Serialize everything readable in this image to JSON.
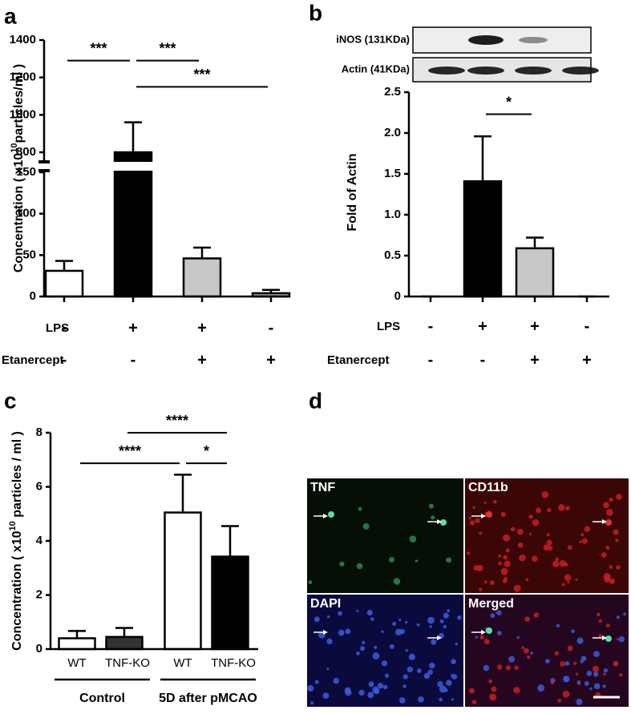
{
  "chart_data": [
    {
      "type": "bar",
      "label": "a",
      "ylabel": {
        "text": "Concentration ( x10",
        "sup": "10",
        "rest": "particles/ml )"
      },
      "values": [
        31,
        800,
        46,
        4
      ],
      "errors": [
        12,
        160,
        13,
        4
      ],
      "colors": [
        "#ffffff",
        "#000000",
        "#c8c8c8",
        "#a0a0a0"
      ],
      "ylim": [
        0,
        1400
      ],
      "axis_break": [
        150,
        800
      ],
      "yticks": [
        0,
        50,
        100,
        150,
        800,
        1000,
        1200,
        1400
      ],
      "conditions": [
        {
          "name": "LPS",
          "signs": [
            "-",
            "+",
            "+",
            "-"
          ]
        },
        {
          "name": "Etanercept",
          "signs": [
            "-",
            "-",
            "+",
            "+"
          ]
        }
      ],
      "significance": [
        {
          "from": 0,
          "to": 1,
          "label": "***",
          "y": 1290
        },
        {
          "from": 1,
          "to": 2,
          "label": "***",
          "y": 1290
        },
        {
          "from": 1,
          "to": 3,
          "label": "***",
          "y": 1150
        }
      ]
    },
    {
      "type": "bar",
      "label": "b",
      "ylabel": {
        "text": "Fold of Actin"
      },
      "blot_labels": [
        "iNOS (131KDa)",
        "Actin (41KDa)"
      ],
      "values": [
        0,
        1.41,
        0.59,
        0
      ],
      "errors": [
        0,
        0.55,
        0.13,
        0
      ],
      "colors": [
        "#ffffff",
        "#000000",
        "#c8c8c8",
        "#a0a0a0"
      ],
      "ylim": [
        0,
        2.5
      ],
      "yticks": [
        0,
        0.5,
        {
          "value": 1,
          "label": "1.0"
        },
        1.5,
        {
          "value": 2,
          "label": "2.0"
        },
        2.5
      ],
      "conditions": [
        {
          "name": "LPS",
          "signs": [
            "-",
            "+",
            "+",
            "-"
          ]
        },
        {
          "name": "Etanercept",
          "signs": [
            "-",
            "-",
            "+",
            "+"
          ]
        }
      ],
      "significance": [
        {
          "from": 1,
          "to": 2,
          "label": "*",
          "y": 2.23
        }
      ]
    },
    {
      "type": "bar",
      "label": "c",
      "ylabel": {
        "text": "Concentration ( x10",
        "sup": "10",
        "rest": " particles / ml )"
      },
      "categories": [
        "WT",
        "TNF-KO",
        "WT",
        "TNF-KO"
      ],
      "values": [
        0.4,
        0.45,
        5.05,
        3.42
      ],
      "errors": [
        0.27,
        0.33,
        1.4,
        1.13
      ],
      "colors": [
        "#ffffff",
        "#333333",
        "#ffffff",
        "#000000"
      ],
      "ylim": [
        0,
        8
      ],
      "yticks": [
        0,
        2,
        4,
        6,
        8
      ],
      "groups": [
        {
          "label": "Control",
          "from": 0,
          "to": 1
        },
        {
          "label": "5D after pMCAO",
          "from": 2,
          "to": 3
        }
      ],
      "significance": [
        {
          "from": 1,
          "to": 3,
          "label": "****",
          "y": 8
        },
        {
          "from": 0,
          "to": 2,
          "label": "****",
          "y": 6.87
        },
        {
          "from": 2,
          "to": 3,
          "label": "*",
          "y": 6.87
        }
      ]
    }
  ],
  "image_panel": {
    "label": "d",
    "tiles": [
      "TNF",
      "CD11b",
      "DAPI",
      "Merged"
    ]
  }
}
